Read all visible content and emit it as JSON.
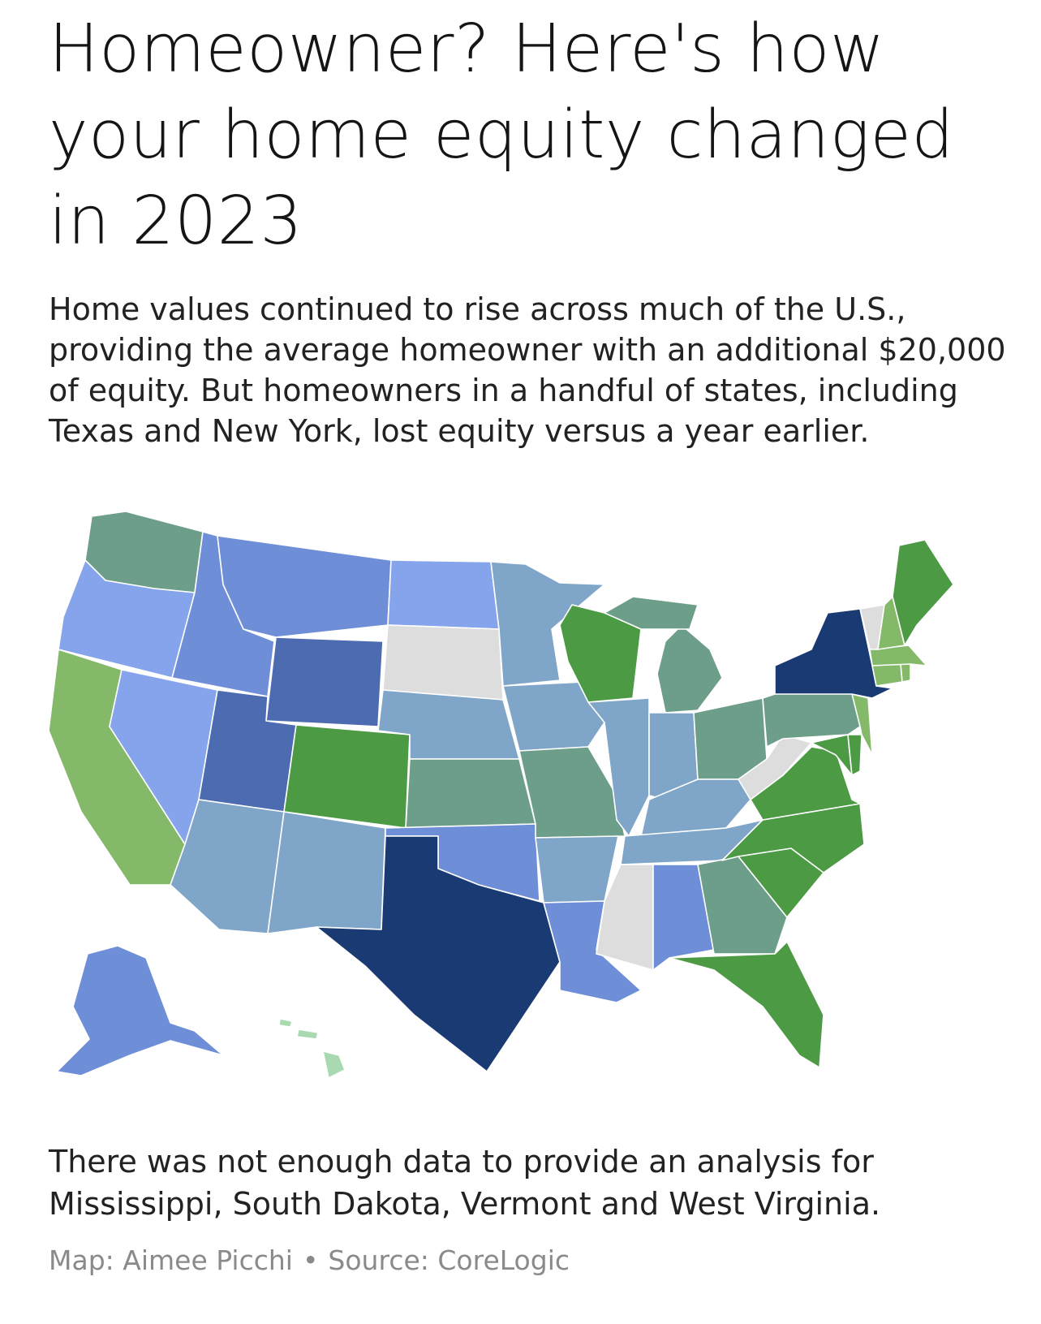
{
  "headline": "Homeowner? Here's how your home equity changed in 2023",
  "dek": "Home values continued to rise across much of the U.S., providing the average homeowner with an additional $20,000 of equity. But homeowners in a handful of states, including Texas and New York, lost equity versus a year earlier.",
  "note": "There was not enough data to provide an analysis for Mississippi, South Dakota, Vermont and West Virginia.",
  "credit": {
    "map": "Map: Aimee Picchi",
    "separator": "•",
    "source": "Source: CoreLogic"
  },
  "colors": {
    "dark_navy": "#193a72",
    "dark_blue": "#4c6bb0",
    "mid_blue": "#6f8ed8",
    "light_blue": "#86a4ec",
    "steel_blue": "#7fa5c8",
    "teal_green": "#6c9e8a",
    "green": "#4d9a44",
    "light_green": "#85b96a",
    "pale_green": "#a8d9b0",
    "no_data": "#dddddd"
  },
  "states": {
    "WA": "teal_green",
    "OR": "light_blue",
    "CA": "light_green",
    "NV": "light_blue",
    "ID": "mid_blue",
    "MT": "mid_blue",
    "WY": "dark_blue",
    "UT": "dark_blue",
    "AZ": "steel_blue",
    "CO": "green",
    "NM": "steel_blue",
    "ND": "light_blue",
    "SD": "no_data",
    "NE": "steel_blue",
    "KS": "teal_green",
    "OK": "mid_blue",
    "TX": "dark_navy",
    "MN": "steel_blue",
    "IA": "steel_blue",
    "MO": "teal_green",
    "AR": "steel_blue",
    "LA": "mid_blue",
    "WI": "green",
    "IL": "steel_blue",
    "MI": "teal_green",
    "IN": "steel_blue",
    "OH": "teal_green",
    "KY": "steel_blue",
    "TN": "steel_blue",
    "MS": "no_data",
    "AL": "mid_blue",
    "GA": "teal_green",
    "FL": "green",
    "SC": "green",
    "NC": "green",
    "VA": "green",
    "WV": "no_data",
    "PA": "teal_green",
    "NY": "dark_navy",
    "NJ": "light_green",
    "DE": "green",
    "MD": "green",
    "CT": "light_green",
    "RI": "light_green",
    "MA": "light_green",
    "VT": "no_data",
    "NH": "light_green",
    "ME": "green",
    "AK": "mid_blue",
    "HI": "pale_green"
  }
}
